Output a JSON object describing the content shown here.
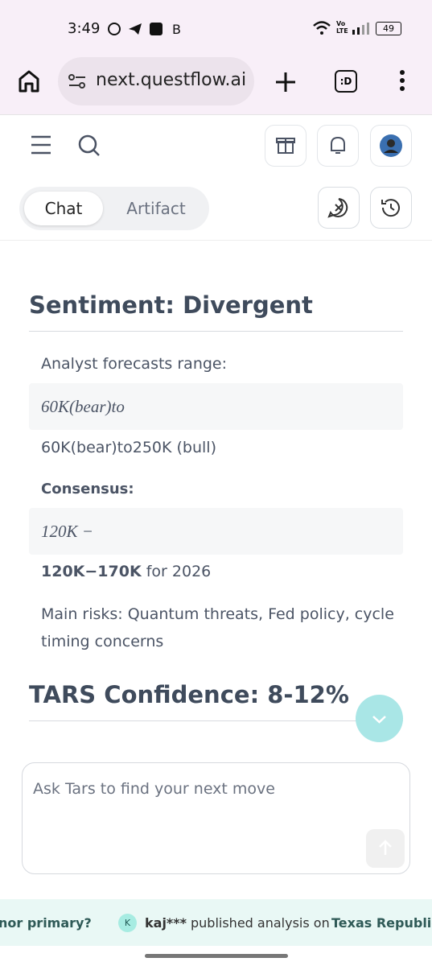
{
  "status": {
    "time": "3:49",
    "network": "Vo LTE",
    "battery": "49"
  },
  "browser": {
    "url": "next.questflow.ai",
    "tab_count": ":D"
  },
  "tabs": [
    "Chat",
    "Artifact"
  ],
  "content": {
    "heading1": "Sentiment: Divergent",
    "forecast_intro": "Analyst forecasts range:",
    "math1": "60K(bear)to",
    "forecast_text": "60K(bear)to250K (bull)",
    "consensus_label": "Consensus:",
    "math2": "120K −",
    "consensus_value": "120K−170K",
    "consensus_suffix": " for 2026",
    "risks": "Main risks: Quantum threats, Fed policy, cycle timing concerns",
    "heading2": "TARS Confidence: 8-12%"
  },
  "input": {
    "placeholder": "Ask Tars to find your next move"
  },
  "ticker": {
    "prev": "nor primary?",
    "avatar": "K",
    "user": "kaj***",
    "action": "published analysis on",
    "topic": "Texas Republica"
  }
}
